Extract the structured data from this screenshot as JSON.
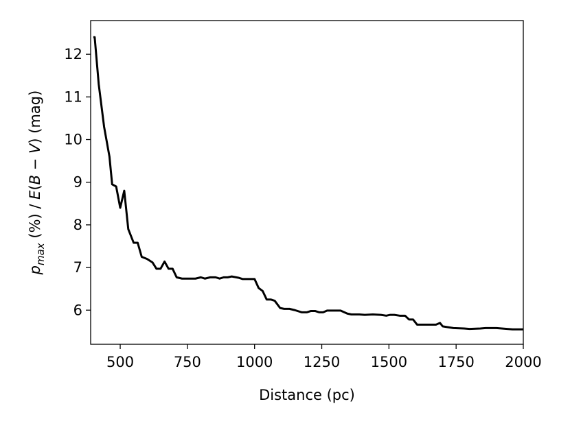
{
  "chart_data": {
    "type": "line",
    "xlabel": "Distance (pc)",
    "ylabel": [
      "p",
      "max",
      " (%) / ",
      "E",
      "(",
      "B",
      " − ",
      "V",
      ") (mag)"
    ],
    "xlim": [
      390,
      2000
    ],
    "ylim": [
      5.2,
      12.79
    ],
    "xticks": [
      500,
      750,
      1000,
      1250,
      1500,
      1750,
      2000
    ],
    "yticks": [
      6,
      7,
      8,
      9,
      10,
      11,
      12
    ],
    "grid": false,
    "series": [
      {
        "color": "#000000",
        "x": [
          400,
          405,
          420,
          440,
          460,
          470,
          485,
          500,
          515,
          530,
          550,
          565,
          580,
          600,
          620,
          635,
          650,
          665,
          680,
          695,
          710,
          730,
          780,
          800,
          815,
          835,
          855,
          870,
          885,
          900,
          915,
          940,
          955,
          1000,
          1015,
          1030,
          1045,
          1060,
          1075,
          1095,
          1110,
          1130,
          1150,
          1175,
          1195,
          1210,
          1225,
          1240,
          1255,
          1270,
          1295,
          1320,
          1345,
          1360,
          1390,
          1410,
          1440,
          1470,
          1490,
          1505,
          1520,
          1540,
          1560,
          1575,
          1590,
          1605,
          1650,
          1675,
          1690,
          1700,
          1740,
          1780,
          1800,
          1840,
          1860,
          1900,
          1940,
          1960,
          2000
        ],
        "values": [
          12.4,
          12.4,
          11.3,
          10.3,
          9.6,
          8.95,
          8.9,
          8.4,
          8.8,
          7.9,
          7.58,
          7.58,
          7.25,
          7.2,
          7.12,
          6.97,
          6.97,
          7.14,
          6.97,
          6.97,
          6.77,
          6.74,
          6.74,
          6.77,
          6.74,
          6.77,
          6.77,
          6.74,
          6.77,
          6.77,
          6.79,
          6.76,
          6.73,
          6.73,
          6.52,
          6.45,
          6.25,
          6.25,
          6.22,
          6.05,
          6.03,
          6.03,
          6.0,
          5.95,
          5.95,
          5.98,
          5.98,
          5.95,
          5.95,
          5.99,
          5.99,
          5.99,
          5.92,
          5.9,
          5.9,
          5.89,
          5.9,
          5.89,
          5.87,
          5.89,
          5.89,
          5.87,
          5.87,
          5.78,
          5.78,
          5.66,
          5.66,
          5.66,
          5.7,
          5.62,
          5.58,
          5.57,
          5.56,
          5.57,
          5.58,
          5.58,
          5.56,
          5.55,
          5.55
        ]
      }
    ]
  }
}
